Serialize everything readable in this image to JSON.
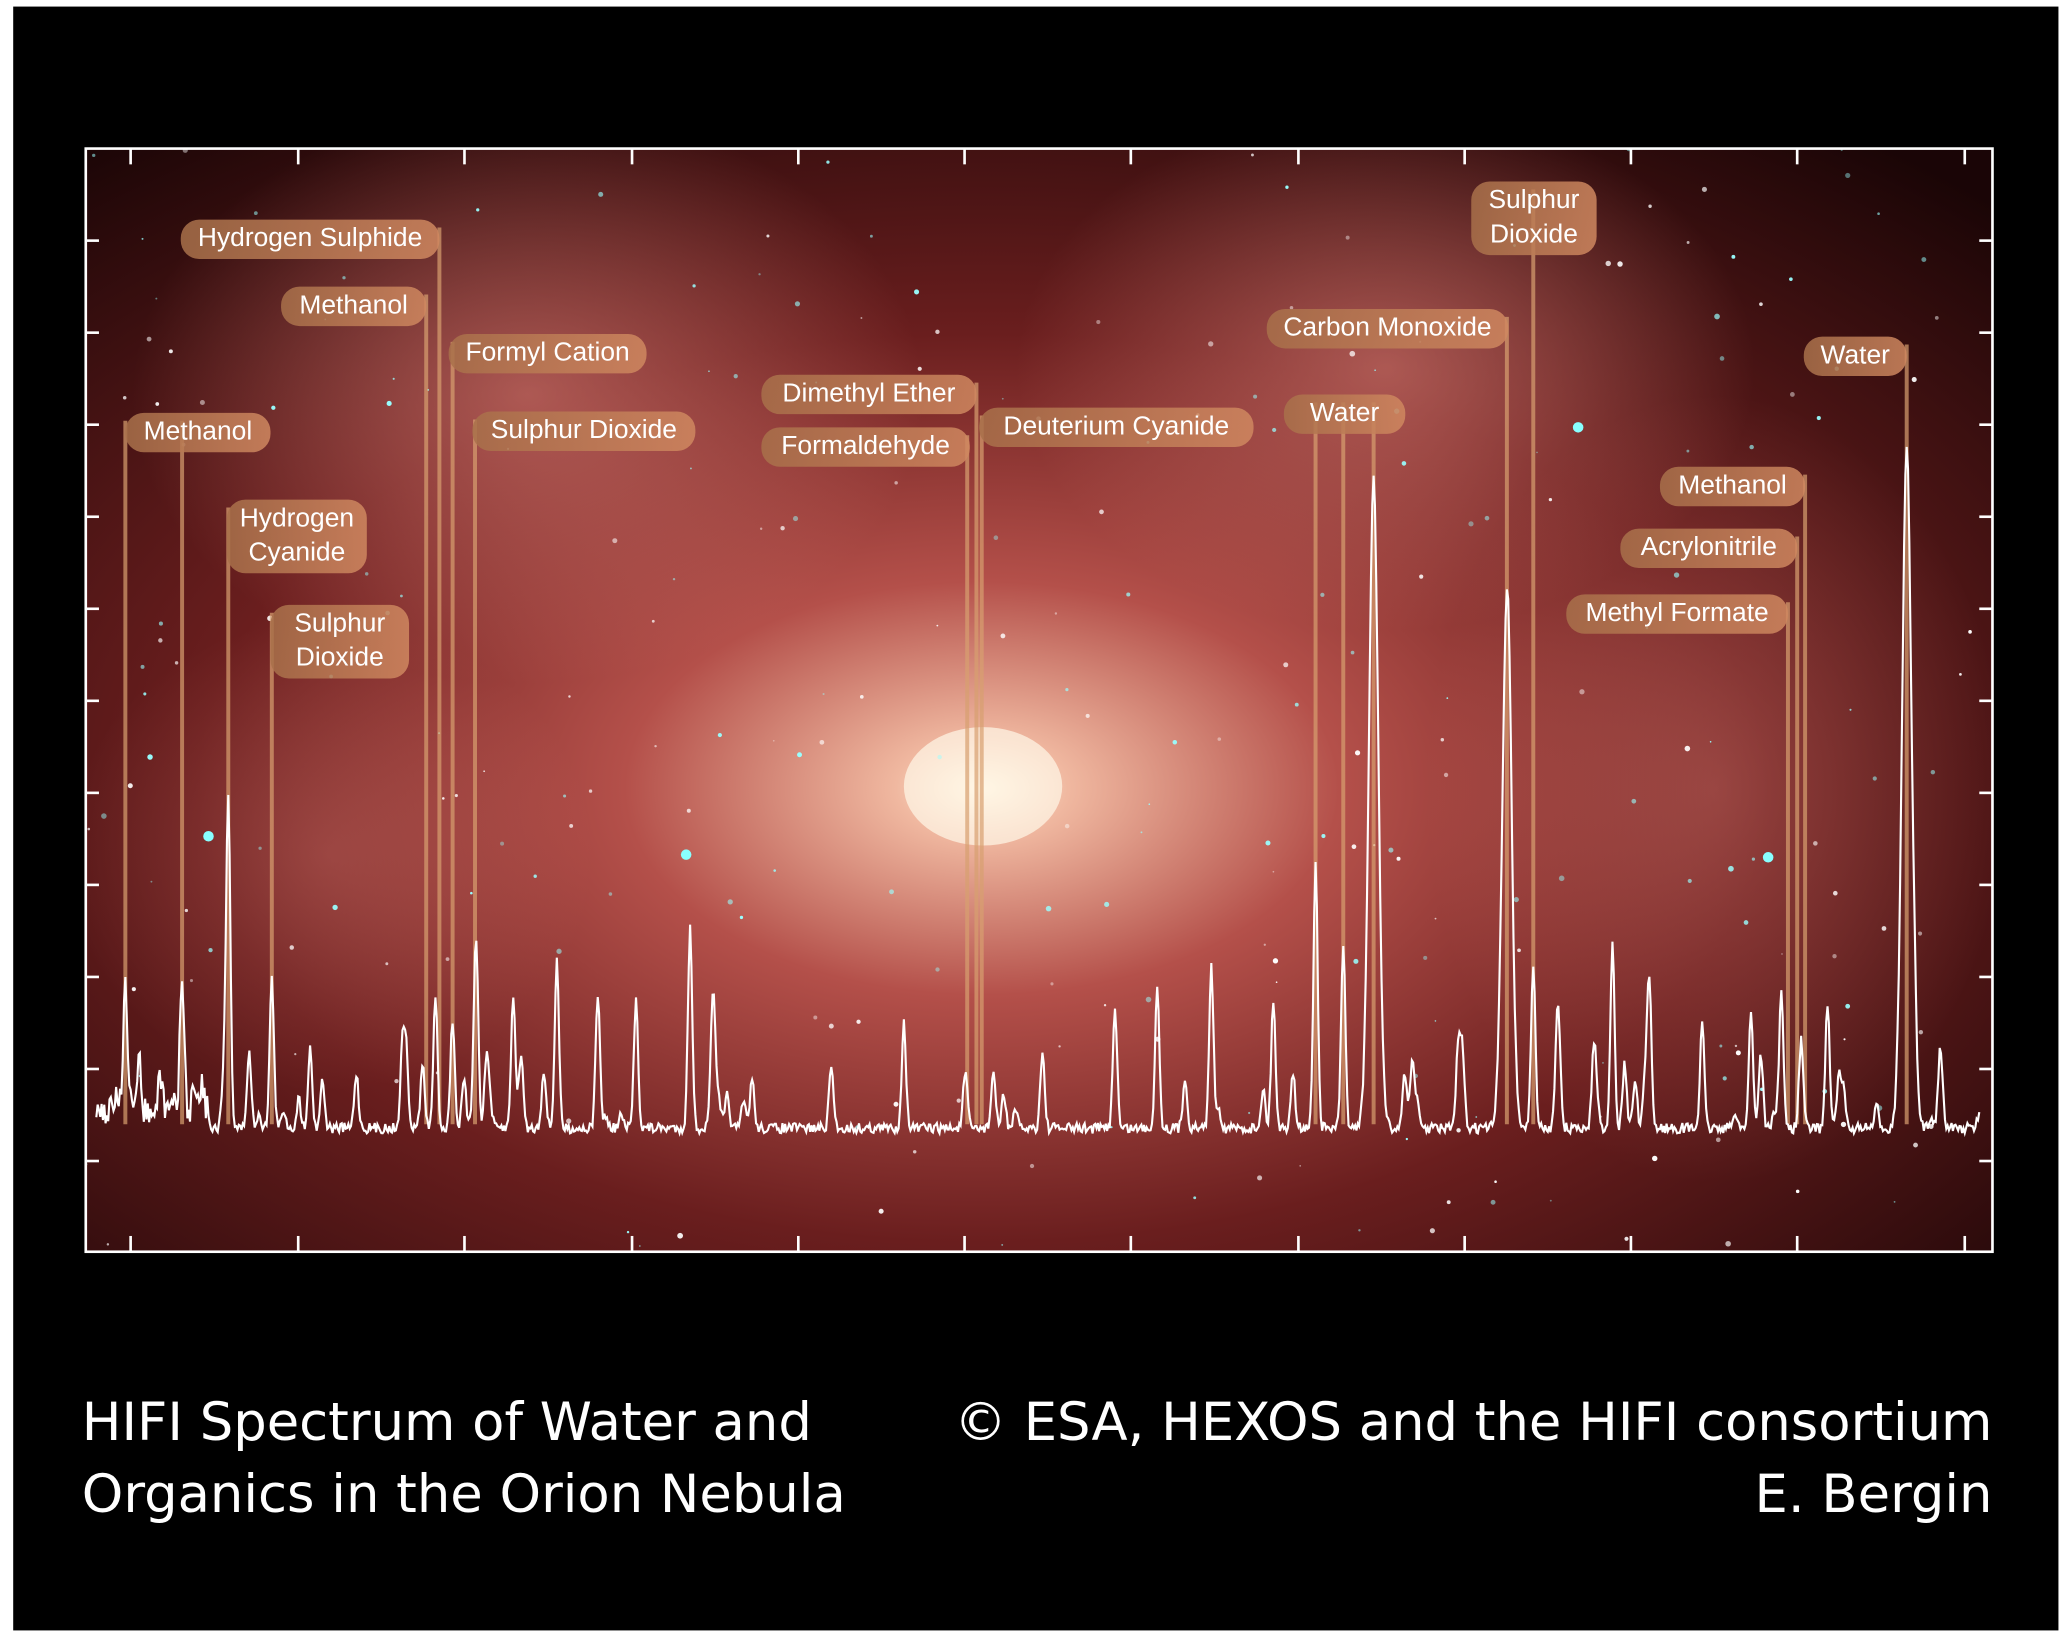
{
  "caption": {
    "title_lines": [
      "HIFI Spectrum of Water and",
      "Organics in the Orion Nebula"
    ],
    "credit_lines": [
      "© ESA, HEXOS and the HIFI consortium",
      "E. Bergin"
    ]
  },
  "labels": [
    {
      "lines": [
        "Methanol"
      ]
    },
    {
      "lines": [
        "Hydrogen Sulphide"
      ]
    },
    {
      "lines": [
        "Methanol"
      ]
    },
    {
      "lines": [
        "Formyl Cation"
      ]
    },
    {
      "lines": [
        "Sulphur Dioxide"
      ]
    },
    {
      "lines": [
        "Hydrogen",
        "Cyanide"
      ]
    },
    {
      "lines": [
        "Sulphur",
        "Dioxide"
      ]
    },
    {
      "lines": [
        "Dimethyl Ether"
      ]
    },
    {
      "lines": [
        "Formaldehyde"
      ]
    },
    {
      "lines": [
        "Deuterium Cyanide"
      ]
    },
    {
      "lines": [
        "Carbon Monoxide"
      ]
    },
    {
      "lines": [
        "Water"
      ]
    },
    {
      "lines": [
        "Sulphur",
        "Dioxide"
      ]
    },
    {
      "lines": [
        "Water"
      ]
    },
    {
      "lines": [
        "Methanol"
      ]
    },
    {
      "lines": [
        "Acrylonitrile"
      ]
    },
    {
      "lines": [
        "Methyl Formate"
      ]
    }
  ]
}
